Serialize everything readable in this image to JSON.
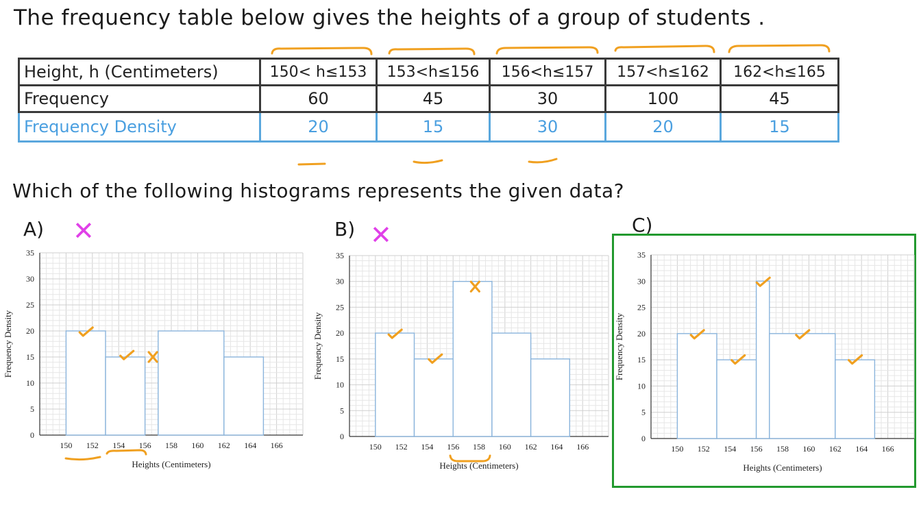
{
  "title": "The frequency table below gives the heights of a group of students .",
  "table": {
    "header_label": "Height, h (Centimeters)",
    "intervals": [
      "150< h≤153",
      "153<h≤156",
      "156<h≤157",
      "157<h≤162",
      "162<h≤165"
    ],
    "frequency_label": "Frequency",
    "frequencies": [
      "60",
      "45",
      "30",
      "100",
      "45"
    ],
    "density_label": "Frequency Density",
    "densities": [
      "20",
      "15",
      "30",
      "20",
      "15"
    ]
  },
  "question": "Which of the following histograms represents the given data?",
  "options": {
    "a_label": "A)",
    "b_label": "B)",
    "c_label": "C)",
    "wrong_mark": "✕"
  },
  "colors": {
    "ink": "#1c1c1c",
    "blue": "#4a9fe0",
    "orange": "#f0a020",
    "magenta": "#e040e8",
    "green": "#22992e",
    "bar": "#8ab4dc",
    "grid": "#d6d6d6"
  },
  "chart_data": [
    {
      "type": "bar",
      "name_tag": "A",
      "xlabel": "Heights (Centimeters)",
      "ylabel": "Frequency Density",
      "xlim": [
        148,
        168
      ],
      "ylim": [
        0,
        35
      ],
      "x_ticks": [
        150,
        152,
        154,
        156,
        158,
        160,
        162,
        164,
        166
      ],
      "y_ticks": [
        0,
        5,
        10,
        15,
        20,
        25,
        30,
        35
      ],
      "bars": [
        {
          "x0": 150,
          "x1": 153,
          "value": 20
        },
        {
          "x0": 153,
          "x1": 156,
          "value": 15
        },
        {
          "x0": 157,
          "x1": 162,
          "value": 20
        },
        {
          "x0": 162,
          "x1": 165,
          "value": 15
        }
      ],
      "grid": true
    },
    {
      "type": "bar",
      "name_tag": "B",
      "xlabel": "Heights (Centimeters)",
      "ylabel": "Frequency Density",
      "xlim": [
        148,
        168
      ],
      "ylim": [
        0,
        35
      ],
      "x_ticks": [
        150,
        152,
        154,
        156,
        158,
        160,
        162,
        164,
        166
      ],
      "y_ticks": [
        0,
        5,
        10,
        15,
        20,
        25,
        30,
        35
      ],
      "bars": [
        {
          "x0": 150,
          "x1": 153,
          "value": 20
        },
        {
          "x0": 153,
          "x1": 156,
          "value": 15
        },
        {
          "x0": 156,
          "x1": 159,
          "value": 30
        },
        {
          "x0": 159,
          "x1": 162,
          "value": 20
        },
        {
          "x0": 162,
          "x1": 165,
          "value": 15
        }
      ],
      "grid": true
    },
    {
      "type": "bar",
      "name_tag": "C",
      "xlabel": "Heights (Centimeters)",
      "ylabel": "Frequency Density",
      "xlim": [
        148,
        168
      ],
      "ylim": [
        0,
        35
      ],
      "x_ticks": [
        150,
        152,
        154,
        156,
        158,
        160,
        162,
        164,
        166
      ],
      "y_ticks": [
        0,
        5,
        10,
        15,
        20,
        25,
        30,
        35
      ],
      "bars": [
        {
          "x0": 150,
          "x1": 153,
          "value": 20
        },
        {
          "x0": 153,
          "x1": 156,
          "value": 15
        },
        {
          "x0": 156,
          "x1": 157,
          "value": 30
        },
        {
          "x0": 157,
          "x1": 162,
          "value": 20
        },
        {
          "x0": 162,
          "x1": 165,
          "value": 15
        }
      ],
      "grid": true
    }
  ]
}
